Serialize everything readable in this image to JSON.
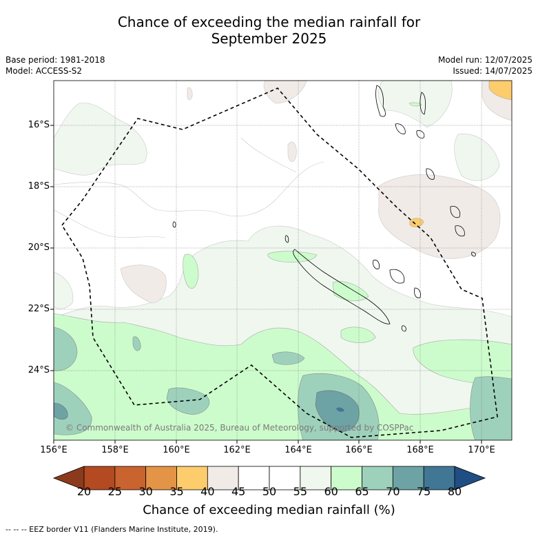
{
  "title_line1": "Chance of exceeding the median rainfall for",
  "title_line2": "September 2025",
  "base_period": "Base period: 1981-2018",
  "model": "Model: ACCESS-S2",
  "model_run": "Model run: 12/07/2025",
  "issued": "Issued: 14/07/2025",
  "lat_labels": [
    "16°S",
    "18°S",
    "20°S",
    "22°S",
    "24°S"
  ],
  "lon_labels": [
    "156°E",
    "158°E",
    "160°E",
    "162°E",
    "164°E",
    "166°E",
    "168°E",
    "170°E"
  ],
  "copyright": "© Commonwealth of Australia 2025, Bureau of Meteorology, supported by COSPPac",
  "colorbar": {
    "labels": [
      "20",
      "25",
      "30",
      "35",
      "40",
      "45",
      "50",
      "55",
      "60",
      "65",
      "70",
      "75",
      "80"
    ],
    "colors": [
      "#b34a22",
      "#c9632f",
      "#e49447",
      "#fdcc6c",
      "#f1ebe8",
      "#ffffff",
      "#ffffff",
      "#eff7ef",
      "#cdfccc",
      "#9ed1bb",
      "#6ea3a5",
      "#417694"
    ],
    "under_color": "#8c3a1c",
    "over_color": "#1f4e84",
    "title": "Chance of exceeding median rainfall (%)"
  },
  "footnote": "--  --  -- EEZ border V11 (Flanders Marine Institute, 2019)."
}
